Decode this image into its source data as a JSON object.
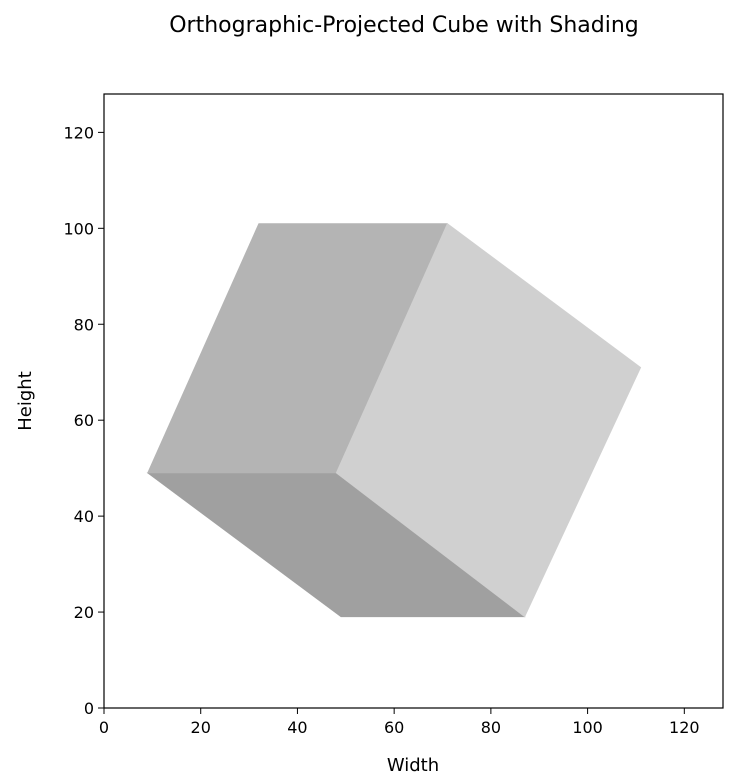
{
  "chart_data": {
    "type": "polygon",
    "title": "Orthographic-Projected Cube with Shading",
    "xlabel": "Width",
    "ylabel": "Height",
    "xlim": [
      0,
      128
    ],
    "ylim": [
      0,
      128
    ],
    "xticks": [
      0,
      20,
      40,
      60,
      80,
      100,
      120
    ],
    "yticks": [
      0,
      20,
      40,
      60,
      80,
      100,
      120
    ],
    "grid": false,
    "faces": [
      {
        "name": "bottom",
        "color": "#a0a0a0",
        "points": [
          [
            9,
            49
          ],
          [
            48,
            49
          ],
          [
            87,
            19
          ],
          [
            49,
            19
          ]
        ]
      },
      {
        "name": "left",
        "color": "#b4b4b4",
        "points": [
          [
            9,
            49
          ],
          [
            32,
            101
          ],
          [
            71,
            101
          ],
          [
            48,
            49
          ]
        ]
      },
      {
        "name": "right",
        "color": "#d0d0d0",
        "points": [
          [
            48,
            49
          ],
          [
            71,
            101
          ],
          [
            111,
            71
          ],
          [
            87,
            19
          ]
        ]
      }
    ]
  }
}
